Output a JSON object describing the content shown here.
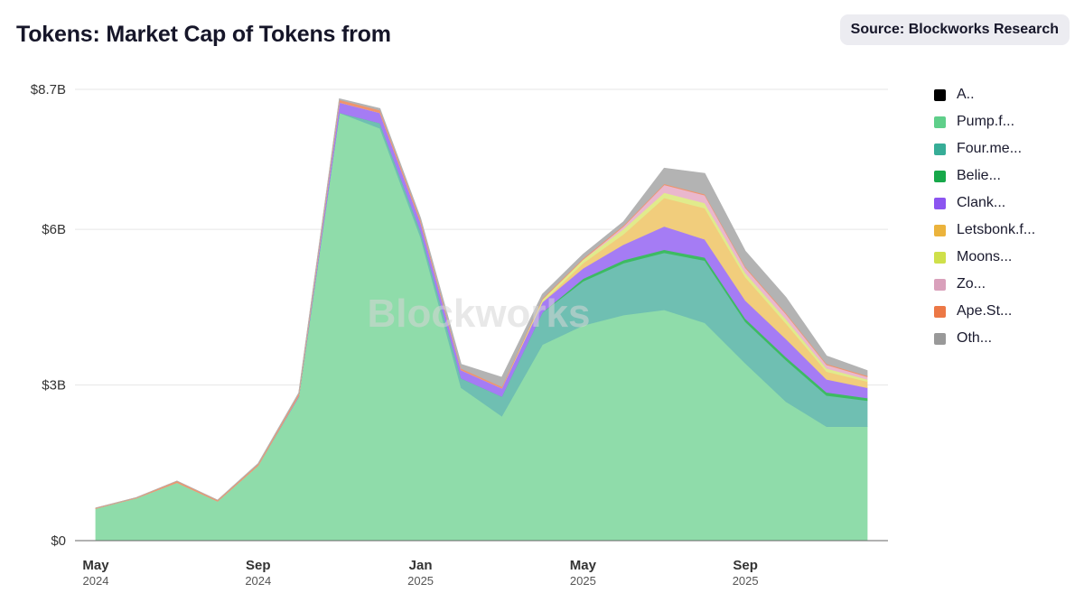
{
  "header": {
    "title": "Tokens: Market Cap of Tokens from",
    "source": "Source: Blockworks Research"
  },
  "watermark": "Blockworks",
  "chart_data": {
    "type": "area",
    "stacked": true,
    "title": "Tokens: Market Cap of Tokens from",
    "xlabel": "",
    "ylabel": "",
    "ylim": [
      0,
      8.7
    ],
    "y_unit": "B USD",
    "y_ticks": [
      {
        "value": 0,
        "label": "$0"
      },
      {
        "value": 3,
        "label": "$3B"
      },
      {
        "value": 6,
        "label": "$6B"
      },
      {
        "value": 8.7,
        "label": "$8.7B"
      }
    ],
    "x_ticks": [
      {
        "index": 0,
        "month": "May",
        "year": "2024"
      },
      {
        "index": 4,
        "month": "Sep",
        "year": "2024"
      },
      {
        "index": 8,
        "month": "Jan",
        "year": "2025"
      },
      {
        "index": 12,
        "month": "May",
        "year": "2025"
      },
      {
        "index": 16,
        "month": "Sep",
        "year": "2025"
      }
    ],
    "x": [
      "2024-05",
      "2024-06",
      "2024-07",
      "2024-08",
      "2024-09",
      "2024-10",
      "2024-11",
      "2024-12",
      "2025-01",
      "2025-02",
      "2025-03",
      "2025-04",
      "2025-05",
      "2025-06",
      "2025-07",
      "2025-08",
      "2025-09",
      "2025-10",
      "2025-11",
      "2025-12"
    ],
    "series": [
      {
        "name": "A..",
        "color": "#000000",
        "values": [
          0,
          0,
          0,
          0,
          0,
          0,
          0,
          0,
          0,
          0,
          0,
          0,
          0,
          0,
          0,
          0,
          0,
          0,
          0,
          0
        ]
      },
      {
        "name": "Pump.f...",
        "color": "#8fdcaa",
        "values": [
          0.62,
          0.82,
          1.12,
          0.76,
          1.45,
          2.78,
          8.25,
          7.95,
          5.85,
          2.95,
          2.4,
          3.78,
          4.15,
          4.35,
          4.45,
          4.2,
          3.42,
          2.68,
          2.2,
          2.2
        ]
      },
      {
        "name": "Four.me...",
        "color": "#6fbfb2",
        "values": [
          0,
          0,
          0,
          0,
          0,
          0,
          0,
          0.1,
          0.12,
          0.18,
          0.38,
          0.62,
          0.85,
          1.0,
          1.1,
          1.2,
          0.8,
          0.8,
          0.6,
          0.5
        ]
      },
      {
        "name": "Belie...",
        "color": "#3dbb62",
        "values": [
          0,
          0,
          0,
          0,
          0,
          0,
          0,
          0,
          0,
          0,
          0,
          0,
          0.05,
          0.06,
          0.06,
          0.06,
          0.06,
          0.06,
          0.06,
          0.05
        ]
      },
      {
        "name": "Clank...",
        "color": "#a57cf4",
        "values": [
          0,
          0,
          0,
          0,
          0,
          0.02,
          0.2,
          0.2,
          0.17,
          0.16,
          0.16,
          0.2,
          0.2,
          0.3,
          0.45,
          0.35,
          0.35,
          0.35,
          0.25,
          0.2
        ]
      },
      {
        "name": "Letsbonk.f...",
        "color": "#f1cd7c",
        "values": [
          0,
          0,
          0,
          0,
          0,
          0,
          0,
          0,
          0,
          0,
          0,
          0,
          0.1,
          0.2,
          0.55,
          0.6,
          0.45,
          0.3,
          0.15,
          0.12
        ]
      },
      {
        "name": "Moons...",
        "color": "#e0eb8c",
        "values": [
          0,
          0,
          0,
          0,
          0,
          0,
          0,
          0,
          0,
          0,
          0,
          0.05,
          0.07,
          0.1,
          0.1,
          0.1,
          0.08,
          0.08,
          0.06,
          0.04
        ]
      },
      {
        "name": "Zo...",
        "color": "#eab7cd",
        "values": [
          0,
          0,
          0,
          0,
          0,
          0,
          0,
          0,
          0,
          0,
          0,
          0,
          0,
          0.05,
          0.15,
          0.15,
          0.1,
          0.1,
          0.07,
          0.05
        ]
      },
      {
        "name": "Ape.St...",
        "color": "#f0946c",
        "values": [
          0.01,
          0.01,
          0.03,
          0.02,
          0.03,
          0.04,
          0.05,
          0.05,
          0.05,
          0.03,
          0.03,
          0.02,
          0.02,
          0.02,
          0.02,
          0.02,
          0.02,
          0.02,
          0.02,
          0.02
        ]
      },
      {
        "name": "Oth...",
        "color": "#b3b3b3",
        "values": [
          0,
          0,
          0,
          0,
          0.01,
          0.01,
          0.02,
          0.03,
          0.03,
          0.08,
          0.18,
          0.08,
          0.08,
          0.07,
          0.3,
          0.4,
          0.3,
          0.3,
          0.15,
          0.1
        ]
      }
    ]
  },
  "legend": {
    "items": [
      {
        "label": "A..",
        "color": "#000000"
      },
      {
        "label": "Pump.f...",
        "color": "#5fcf8a"
      },
      {
        "label": "Four.me...",
        "color": "#37ad97"
      },
      {
        "label": "Belie...",
        "color": "#17a84a"
      },
      {
        "label": "Clank...",
        "color": "#8c55f0"
      },
      {
        "label": "Letsbonk.f...",
        "color": "#ebb33c"
      },
      {
        "label": "Moons...",
        "color": "#cfe04a"
      },
      {
        "label": "Zo...",
        "color": "#d9a0bb"
      },
      {
        "label": "Ape.St...",
        "color": "#ec7846"
      },
      {
        "label": "Oth...",
        "color": "#999999"
      }
    ]
  }
}
